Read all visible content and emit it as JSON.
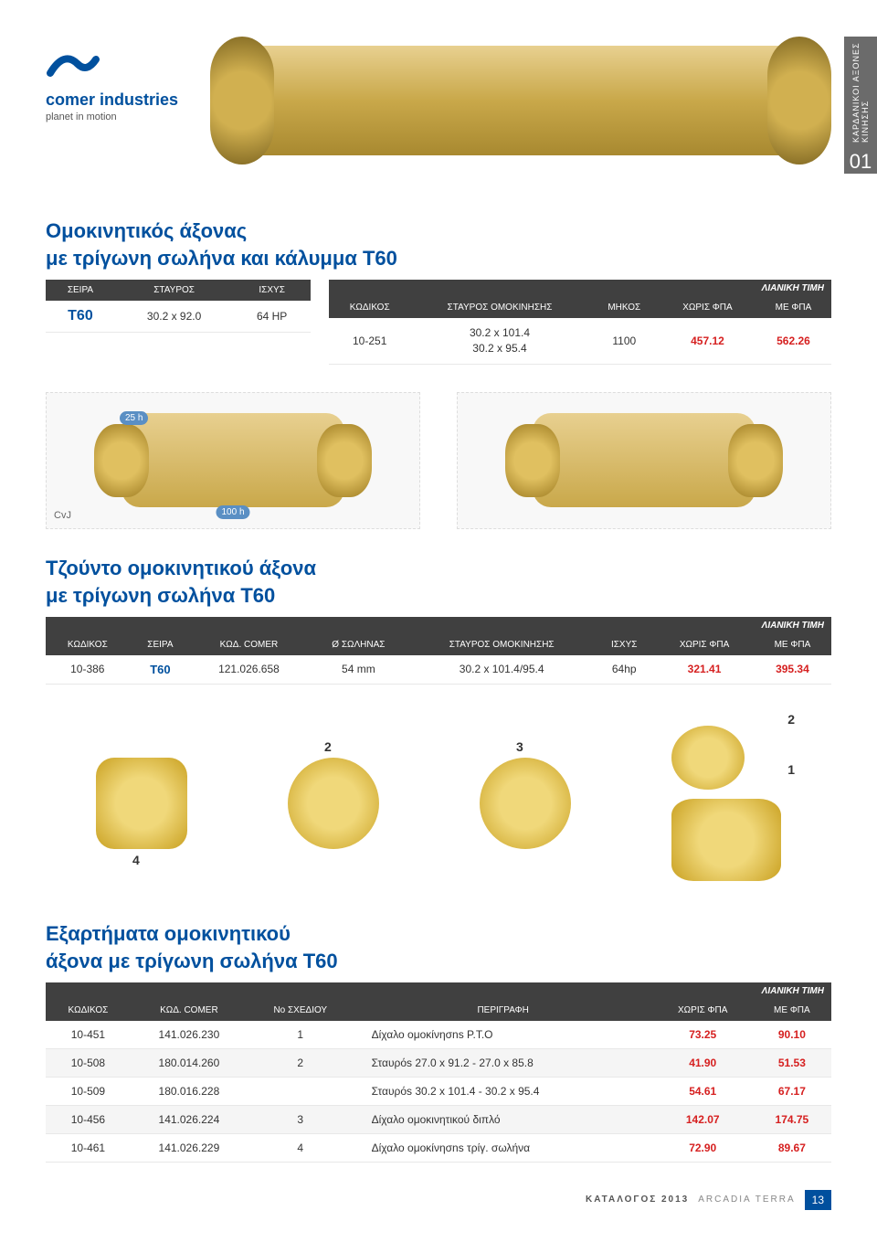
{
  "brand": {
    "name": "comer industries",
    "tagline": "planet in motion"
  },
  "sidetab": {
    "label": "ΚΑΡΔΑΝΙΚΟΙ ΑΞΟΝΕΣ ΚΙΝΗΣΗΣ",
    "num": "01"
  },
  "section1": {
    "title_l1": "Ομοκινητικός  άξονας",
    "title_l2": "με τρίγωνη σωλήνα και κάλυμμα Τ60",
    "left_headers": [
      "ΣΕΙΡΑ",
      "ΣΤΑΥΡΟΣ",
      "ΙΣΧΥΣ"
    ],
    "left_row": {
      "series": "T60",
      "cross": "30.2 x 92.0",
      "power": "64 HP"
    },
    "price_label": "ΛΙΑΝΙΚΗ ΤΙΜΗ",
    "right_headers": [
      "ΚΩΔΙΚΟΣ",
      "ΣΤΑΥΡΟΣ ΟΜΟΚΙΝΗΣΗΣ",
      "ΜΗΚΟΣ",
      "ΧΩΡΙΣ ΦΠΑ",
      "ΜΕ ΦΠΑ"
    ],
    "right_row": {
      "code": "10-251",
      "cross_l1": "30.2 x 101.4",
      "cross_l2": "30.2 x 95.4",
      "length": "1100",
      "novat": "457.12",
      "vat": "562.26"
    }
  },
  "badges": {
    "top": "25 h",
    "bottom": "100 h",
    "cvj": "CvJ"
  },
  "section2": {
    "title_l1": "Τζούντο ομοκινητικού άξονα",
    "title_l2": "με τρίγωνη σωλήνα Τ60",
    "price_label": "ΛΙΑΝΙΚΗ ΤΙΜΗ",
    "headers": [
      "ΚΩΔΙΚΟΣ",
      "ΣΕΙΡΑ",
      "ΚΩΔ. COMER",
      "Ø ΣΩΛΗΝΑΣ",
      "ΣΤΑΥΡΟΣ ΟΜΟΚΙΝΗΣΗΣ",
      "ΙΣΧΥΣ",
      "ΧΩΡΙΣ ΦΠΑ",
      "ΜΕ ΦΠΑ"
    ],
    "row": {
      "code": "10-386",
      "series": "T60",
      "comer": "121.026.658",
      "dia": "54 mm",
      "cross": "30.2 x 101.4/95.4",
      "power": "64hp",
      "novat": "321.41",
      "vat": "395.34"
    }
  },
  "diagram_labels": {
    "p1": "1",
    "p2": "2",
    "p3": "3",
    "p4": "4",
    "p2b": "2",
    "p1b": "1"
  },
  "section3": {
    "title_l1": "Εξαρτήματα ομοκινητικού",
    "title_l2": "άξονα με τρίγωνη σωλήνα Τ60",
    "price_label": "ΛΙΑΝΙΚΗ ΤΙΜΗ",
    "headers": [
      "ΚΩΔΙΚΟΣ",
      "ΚΩΔ. COMER",
      "Νο ΣΧΕΔΙΟΥ",
      "ΠΕΡΙΓΡΑΦΗ",
      "ΧΩΡΙΣ ΦΠΑ",
      "ΜΕ ΦΠΑ"
    ],
    "rows": [
      {
        "code": "10-451",
        "comer": "141.026.230",
        "no": "1",
        "desc": "Δίχαλο ομοκίνησns P.T.O",
        "novat": "73.25",
        "vat": "90.10"
      },
      {
        "code": "10-508",
        "comer": "180.014.260",
        "no": "2",
        "desc": "Σταυρόs 27.0 x 91.2 - 27.0 x 85.8",
        "novat": "41.90",
        "vat": "51.53"
      },
      {
        "code": "10-509",
        "comer": "180.016.228",
        "no": "",
        "desc": "Σταυρόs 30.2 x 101.4 - 30.2 x 95.4",
        "novat": "54.61",
        "vat": "67.17"
      },
      {
        "code": "10-456",
        "comer": "141.026.224",
        "no": "3",
        "desc": "Δίχαλο ομοκινητικού διπλό",
        "novat": "142.07",
        "vat": "174.75"
      },
      {
        "code": "10-461",
        "comer": "141.026.229",
        "no": "4",
        "desc": "Δίχαλο ομοκίνησns τρίγ. σωλήνα",
        "novat": "72.90",
        "vat": "89.67"
      }
    ]
  },
  "footer": {
    "catalog": "ΚΑΤΑΛΟΓΟΣ 2013",
    "brand": "ARCADIA TERRA",
    "page": "13"
  },
  "colors": {
    "brand_blue": "#00509e",
    "header_dark": "#404040",
    "price_red": "#d62020",
    "side_gray": "#6b6b6b"
  }
}
